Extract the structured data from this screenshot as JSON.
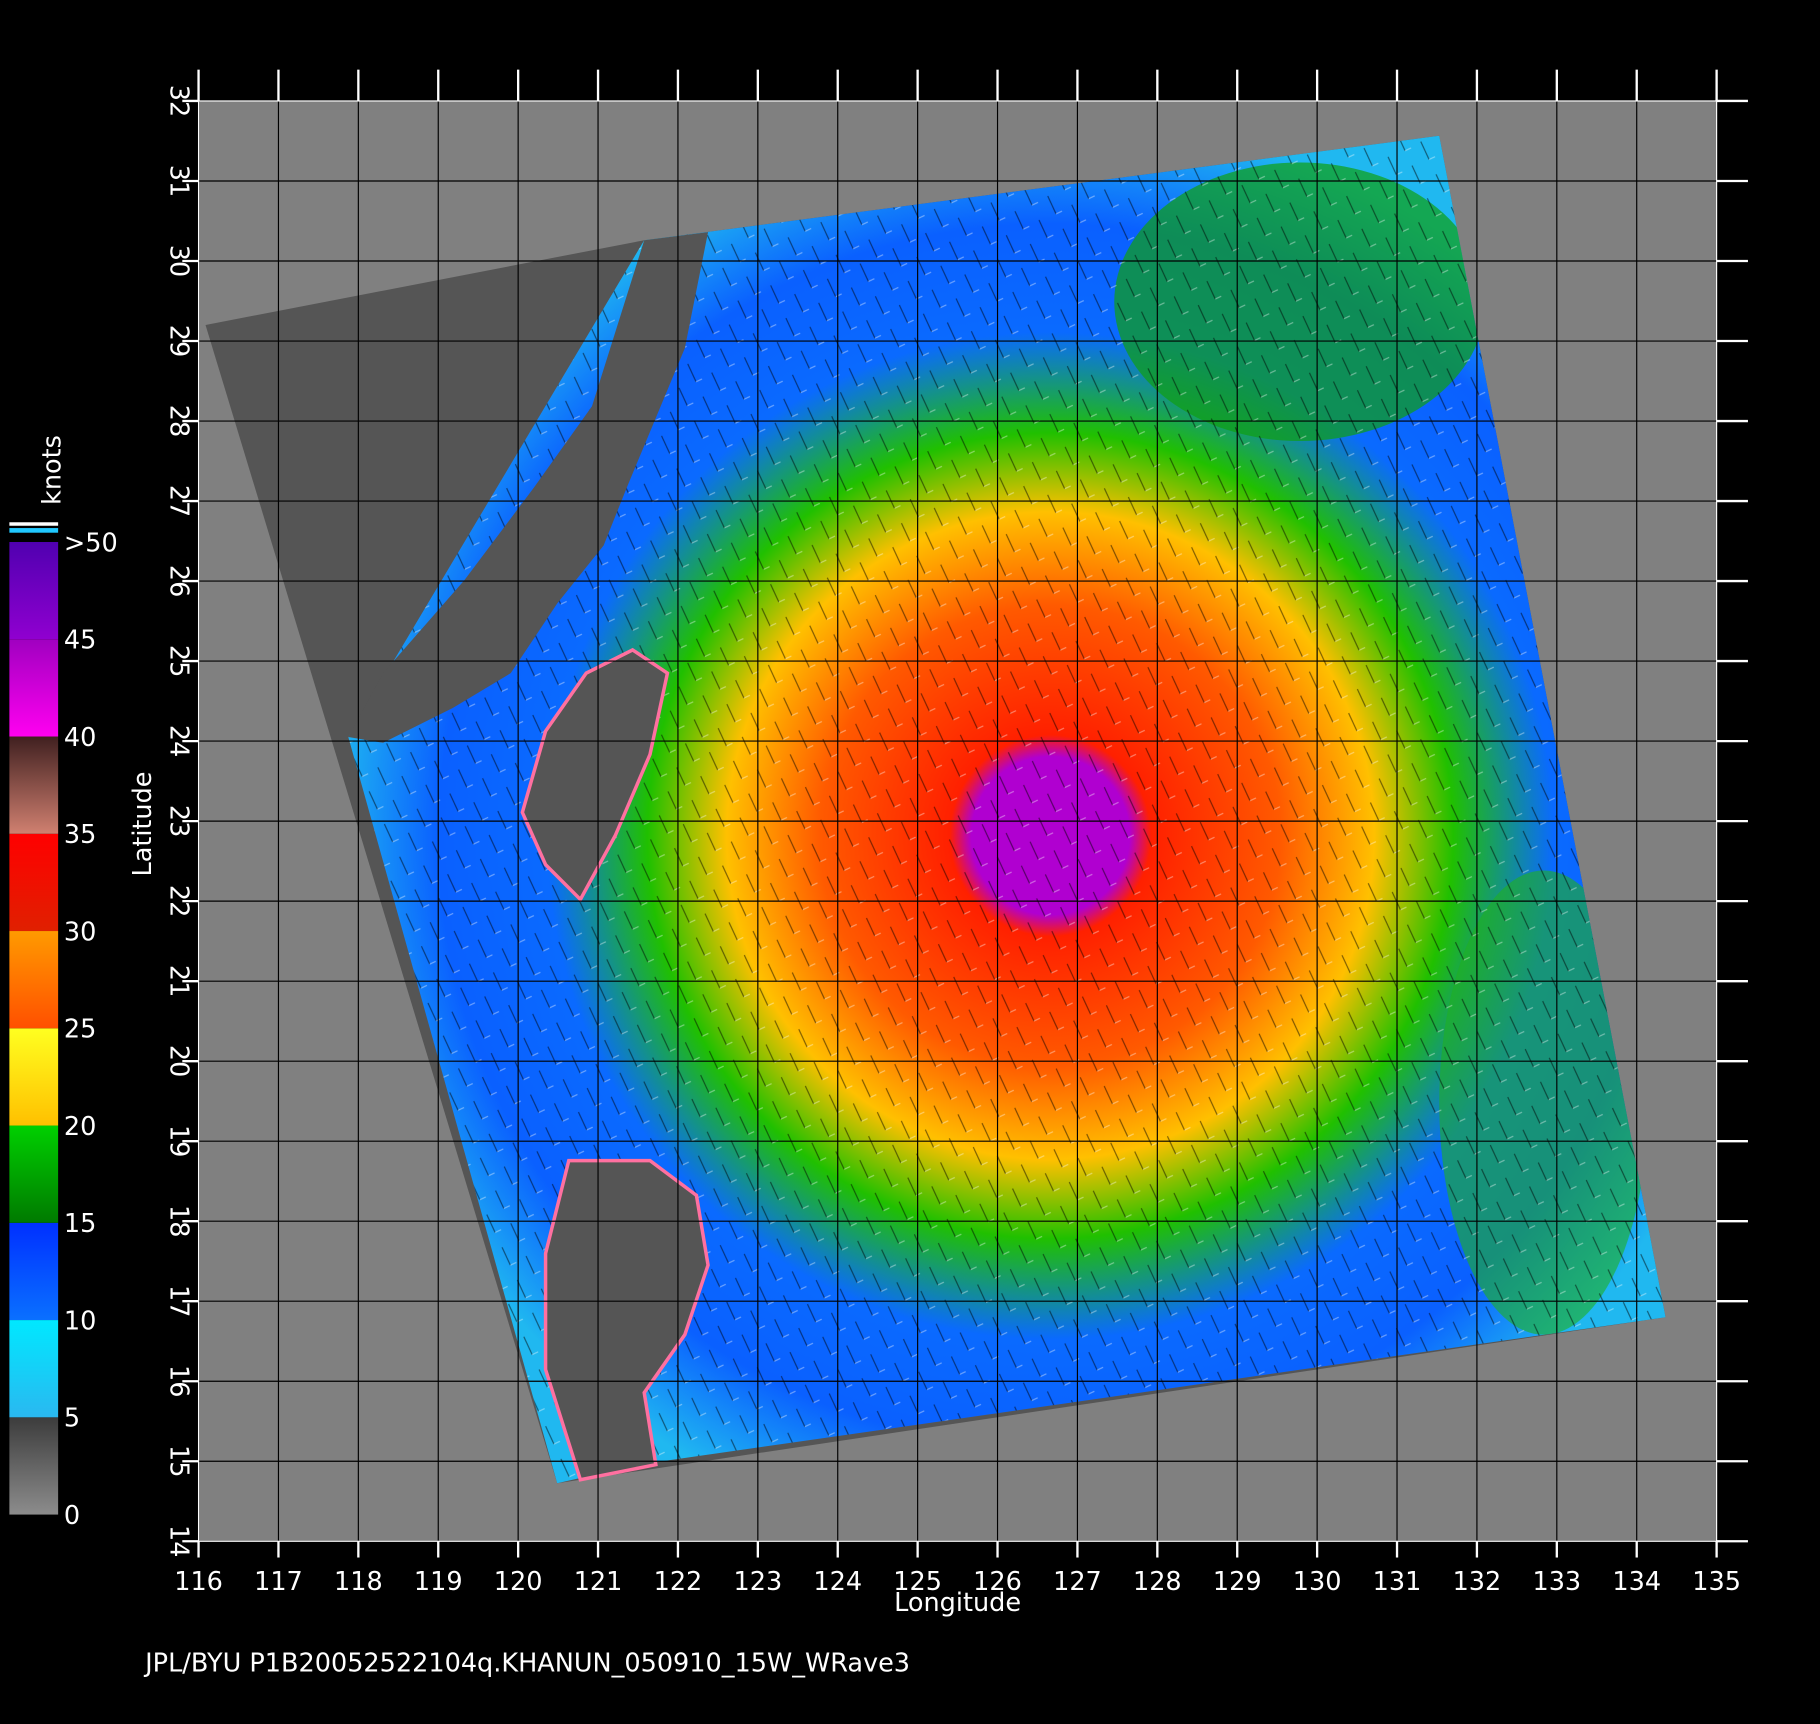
{
  "map": {
    "xlabel": "Longitude",
    "ylabel": "Latitude",
    "xlim": [
      116,
      135
    ],
    "ylim": [
      14,
      32
    ],
    "xticks": [
      116,
      117,
      118,
      119,
      120,
      121,
      122,
      123,
      124,
      125,
      126,
      127,
      128,
      129,
      130,
      131,
      132,
      133,
      134,
      135
    ],
    "yticks": [
      14,
      15,
      16,
      17,
      18,
      19,
      20,
      21,
      22,
      23,
      24,
      25,
      26,
      27,
      28,
      29,
      30,
      31,
      32
    ],
    "colorbar": {
      "title": "knots",
      "ticks": [
        0,
        5,
        10,
        15,
        20,
        25,
        30,
        35,
        40,
        45,
        {
          "value": 50,
          "label": ">50"
        }
      ],
      "colors": [
        [
          "#3c3c3c",
          "#8c8c8c"
        ],
        [
          "#00e8ff",
          "#2ab8f0"
        ],
        [
          "#0030ff",
          "#0a70ff"
        ],
        [
          "#00d000",
          "#007a00"
        ],
        [
          "#ffff20",
          "#ffc000"
        ],
        [
          "#ff9a00",
          "#ff5000"
        ],
        [
          "#ff0000",
          "#e02000"
        ],
        [
          "#402020",
          "#d08070"
        ],
        [
          "#a000c0",
          "#ff00f0"
        ],
        [
          "#5000b0",
          "#9000d0"
        ]
      ]
    },
    "footer": "JPL/BYU  P1B20052522104q.KHANUN_050910_15W_WRave3"
  }
}
